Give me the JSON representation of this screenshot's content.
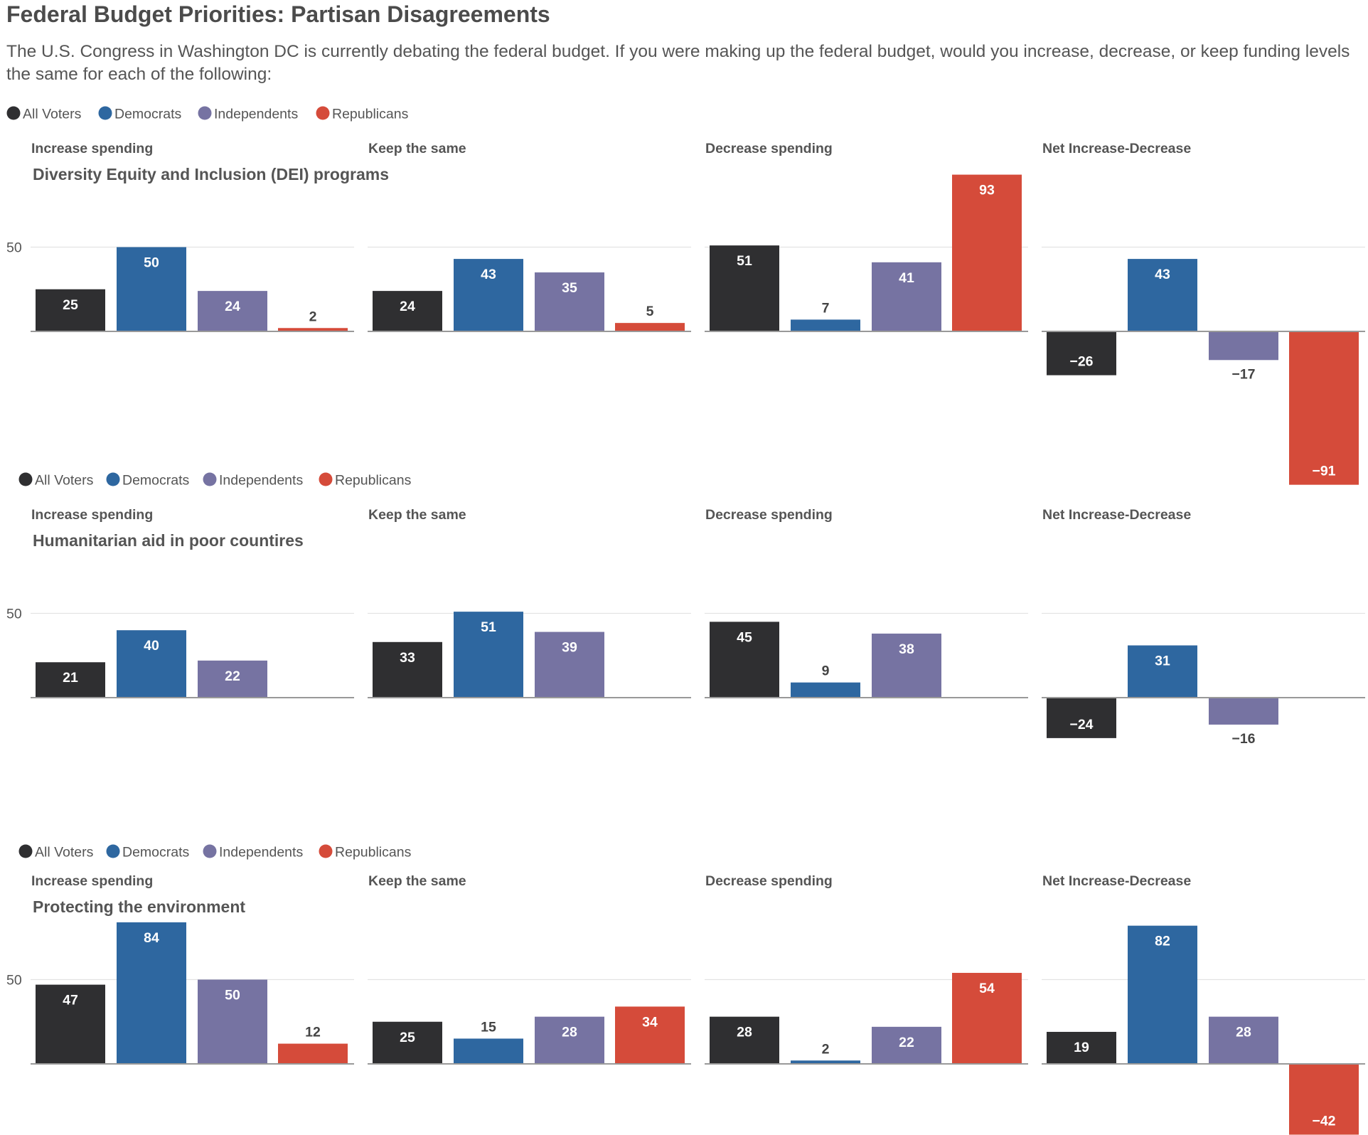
{
  "title": "Federal Budget Priorities: Partisan Disagreements",
  "subtitle": "The U.S. Congress in Washington DC is currently debating the federal budget. If you were making up the federal budget, would you increase, decrease, or keep funding levels the same for each of the following:",
  "colors": {
    "All Voters": "#2f2f31",
    "Democrats": "#2e67a0",
    "Independents": "#7673a2",
    "Republicans": "#d54b3a",
    "axis": "#999999",
    "grid": "#e3e3e3",
    "text": "#555555"
  },
  "chart_data": [
    {
      "type": "bar",
      "title": "Diversity Equity and Inclusion (DEI) programs",
      "legend": [
        "All Voters",
        "Democrats",
        "Independents",
        "Republicans"
      ],
      "legend_position": "top-left",
      "ytick": 50,
      "panels": [
        {
          "title": "Increase spending",
          "categories": [
            "All Voters",
            "Democrats",
            "Independents",
            "Republicans"
          ],
          "values": [
            25,
            50,
            24,
            2
          ]
        },
        {
          "title": "Keep the same",
          "categories": [
            "All Voters",
            "Democrats",
            "Independents",
            "Republicans"
          ],
          "values": [
            24,
            43,
            35,
            5
          ]
        },
        {
          "title": "Decrease spending",
          "categories": [
            "All Voters",
            "Democrats",
            "Independents",
            "Republicans"
          ],
          "values": [
            51,
            7,
            41,
            93
          ]
        },
        {
          "title": "Net Increase-Decrease",
          "categories": [
            "All Voters",
            "Democrats",
            "Independents",
            "Republicans"
          ],
          "values": [
            -26,
            43,
            -17,
            -91
          ]
        }
      ]
    },
    {
      "type": "bar",
      "title": "Humanitarian aid in poor countires",
      "legend": [
        "All Voters",
        "Democrats",
        "Independents",
        "Republicans"
      ],
      "legend_position": "top-left",
      "ytick": 50,
      "panels": [
        {
          "title": "Increase spending",
          "categories": [
            "All Voters",
            "Democrats",
            "Independents",
            "Republicans"
          ],
          "values": [
            21,
            40,
            22,
            null
          ]
        },
        {
          "title": "Keep the same",
          "categories": [
            "All Voters",
            "Democrats",
            "Independents",
            "Republicans"
          ],
          "values": [
            33,
            51,
            39,
            null
          ]
        },
        {
          "title": "Decrease spending",
          "categories": [
            "All Voters",
            "Democrats",
            "Independents",
            "Republicans"
          ],
          "values": [
            45,
            9,
            38,
            null
          ]
        },
        {
          "title": "Net Increase-Decrease",
          "categories": [
            "All Voters",
            "Democrats",
            "Independents",
            "Republicans"
          ],
          "values": [
            -24,
            31,
            -16,
            null
          ]
        }
      ]
    },
    {
      "type": "bar",
      "title": "Protecting the environment",
      "legend": [
        "All Voters",
        "Democrats",
        "Independents",
        "Republicans"
      ],
      "legend_position": "top-left",
      "ytick": 50,
      "panels": [
        {
          "title": "Increase spending",
          "categories": [
            "All Voters",
            "Democrats",
            "Independents",
            "Republicans"
          ],
          "values": [
            47,
            84,
            50,
            12
          ]
        },
        {
          "title": "Keep the same",
          "categories": [
            "All Voters",
            "Democrats",
            "Independents",
            "Republicans"
          ],
          "values": [
            25,
            15,
            28,
            34
          ]
        },
        {
          "title": "Decrease spending",
          "categories": [
            "All Voters",
            "Democrats",
            "Independents",
            "Republicans"
          ],
          "values": [
            28,
            2,
            22,
            54
          ]
        },
        {
          "title": "Net Increase-Decrease",
          "categories": [
            "All Voters",
            "Democrats",
            "Independents",
            "Republicans"
          ],
          "values": [
            19,
            82,
            28,
            -42
          ]
        }
      ]
    }
  ]
}
